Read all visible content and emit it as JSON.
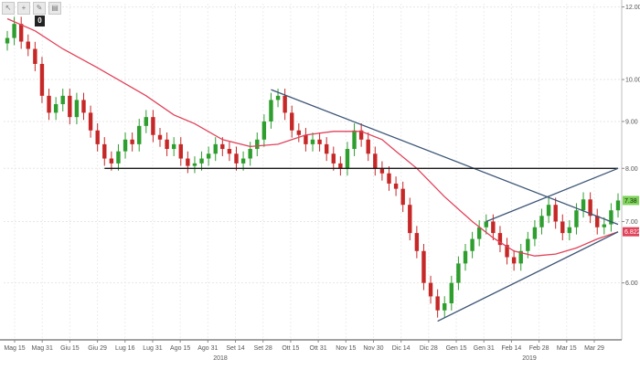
{
  "toolbar": {
    "icons": [
      "arrow-icon",
      "crosshair-icon",
      "pencil-icon",
      "eraser-icon"
    ],
    "zoom_label": "0"
  },
  "chart_data": {
    "type": "candlestick",
    "instrument_currency": "EUR",
    "title": "",
    "xlabel": "",
    "ylabel": "",
    "y_axis_side": "right",
    "ylim": [
      5.2,
      12.1
    ],
    "y_ticks": [
      "12.00",
      "10.00",
      "9.00",
      "8.00",
      "7.00",
      "6.00"
    ],
    "x_ticks": [
      "Mag 15",
      "Mag 31",
      "Giu 15",
      "Giu 29",
      "Lug 16",
      "Lug 31",
      "Ago 15",
      "Ago 31",
      "Set 14",
      "Set 28",
      "Ott 15",
      "Ott 31",
      "Nov 15",
      "Nov 30",
      "Dic 14",
      "Dic 28",
      "Gen 15",
      "Gen 31",
      "Feb 14",
      "Feb 28",
      "Mar 15",
      "Mar 29"
    ],
    "year_labels": [
      "2018",
      "2019"
    ],
    "last_price_label": "7.38",
    "moving_average_label": "6.8223",
    "grid": true,
    "up_color": "#2e9e2e",
    "down_color": "#c62828",
    "ma_color": "#e0425a",
    "trendline_color": "#3d5677",
    "support_color": "#1a1a1a",
    "support_level": 8.0,
    "closes": [
      11.1,
      11.5,
      11.0,
      10.8,
      10.4,
      9.6,
      9.2,
      9.4,
      9.6,
      9.1,
      9.5,
      9.2,
      8.8,
      8.5,
      8.2,
      8.1,
      8.35,
      8.6,
      8.5,
      8.9,
      9.1,
      8.7,
      8.6,
      8.4,
      8.5,
      8.2,
      8.05,
      8.1,
      8.2,
      8.3,
      8.5,
      8.4,
      8.3,
      8.1,
      8.2,
      8.4,
      8.6,
      9.0,
      9.5,
      9.6,
      9.2,
      8.8,
      8.7,
      8.5,
      8.6,
      8.5,
      8.3,
      8.1,
      8.0,
      8.4,
      8.8,
      8.6,
      8.3,
      8.0,
      7.9,
      7.7,
      7.6,
      7.3,
      6.8,
      6.5,
      6.0,
      5.8,
      5.6,
      5.7,
      6.0,
      6.3,
      6.5,
      6.7,
      6.9,
      7.0,
      6.8,
      6.6,
      6.4,
      6.3,
      6.5,
      6.7,
      6.9,
      7.1,
      7.3,
      7.0,
      6.8,
      6.9,
      7.2,
      7.4,
      7.1,
      6.9,
      6.95,
      7.2,
      7.38
    ],
    "ma_curve": [
      {
        "x": 0.0,
        "y": 11.65
      },
      {
        "x": 4.0,
        "y": 11.3
      },
      {
        "x": 8.0,
        "y": 10.8
      },
      {
        "x": 13.0,
        "y": 10.3
      },
      {
        "x": 20.0,
        "y": 9.6
      },
      {
        "x": 24.0,
        "y": 9.15
      },
      {
        "x": 27.0,
        "y": 8.95
      },
      {
        "x": 31.0,
        "y": 8.6
      },
      {
        "x": 35.0,
        "y": 8.45
      },
      {
        "x": 39.0,
        "y": 8.5
      },
      {
        "x": 43.0,
        "y": 8.7
      },
      {
        "x": 47.0,
        "y": 8.78
      },
      {
        "x": 51.0,
        "y": 8.78
      },
      {
        "x": 54.0,
        "y": 8.6
      },
      {
        "x": 56.0,
        "y": 8.35
      },
      {
        "x": 59.0,
        "y": 8.0
      },
      {
        "x": 63.0,
        "y": 7.45
      },
      {
        "x": 67.0,
        "y": 7.0
      },
      {
        "x": 70.0,
        "y": 6.72
      },
      {
        "x": 73.0,
        "y": 6.5
      },
      {
        "x": 76.0,
        "y": 6.42
      },
      {
        "x": 79.0,
        "y": 6.45
      },
      {
        "x": 82.0,
        "y": 6.55
      },
      {
        "x": 85.0,
        "y": 6.7
      },
      {
        "x": 88.0,
        "y": 6.82
      }
    ],
    "trendlines": [
      {
        "name": "resistance-downtrend",
        "from": {
          "x": 38.0,
          "y": 9.75
        },
        "to": {
          "x": 88.0,
          "y": 6.95
        }
      },
      {
        "name": "support-horizontal",
        "from": {
          "x": 14.0,
          "y": 8.0
        },
        "to": {
          "x": 88.0,
          "y": 8.0
        }
      },
      {
        "name": "channel-lower",
        "from": {
          "x": 62.0,
          "y": 5.45
        },
        "to": {
          "x": 88.0,
          "y": 6.82
        }
      },
      {
        "name": "channel-upper",
        "from": {
          "x": 69.0,
          "y": 7.0
        },
        "to": {
          "x": 88.0,
          "y": 8.0
        }
      }
    ]
  }
}
